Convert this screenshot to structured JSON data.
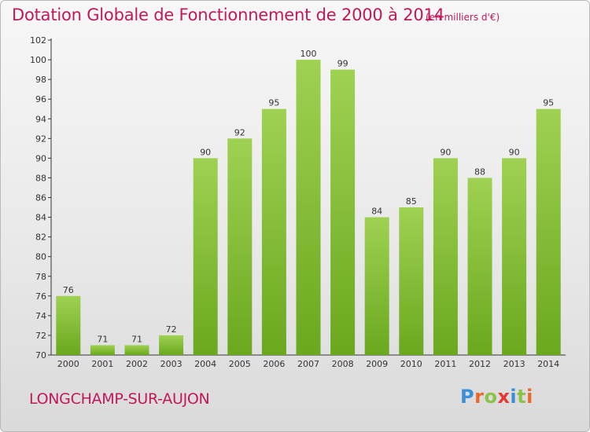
{
  "header": {
    "title": "Dotation Globale de Fonctionnement de 2000 à 2014",
    "unit": "(en milliers d'€)"
  },
  "footer": {
    "commune": "LONGCHAMP-SUR-AUJON",
    "logo_letters": [
      "P",
      "r",
      "o",
      "x",
      "i",
      "t",
      "i"
    ],
    "logo_colors": [
      "#3a8fd9",
      "#e8692a",
      "#8bc34a",
      "#e53935",
      "#3a8fd9",
      "#8bc34a",
      "#e8692a"
    ]
  },
  "colors": {
    "bar_top": "#9fd152",
    "bar_bottom": "#6aa81e",
    "accent": "#c2185b"
  },
  "chart_data": {
    "type": "bar",
    "title": "Dotation Globale de Fonctionnement de 2000 à 2014",
    "subtitle": "(en milliers d'€)",
    "xlabel": "",
    "ylabel": "",
    "categories": [
      "2000",
      "2001",
      "2002",
      "2003",
      "2004",
      "2005",
      "2006",
      "2007",
      "2008",
      "2009",
      "2010",
      "2011",
      "2012",
      "2013",
      "2014"
    ],
    "values": [
      76,
      71,
      71,
      72,
      90,
      92,
      95,
      100,
      99,
      84,
      85,
      90,
      88,
      90,
      95
    ],
    "ylim": [
      70,
      102
    ],
    "yticks": [
      70,
      72,
      74,
      76,
      78,
      80,
      82,
      84,
      86,
      88,
      90,
      92,
      94,
      96,
      98,
      100,
      102
    ],
    "grid": false,
    "data_labels": true
  }
}
